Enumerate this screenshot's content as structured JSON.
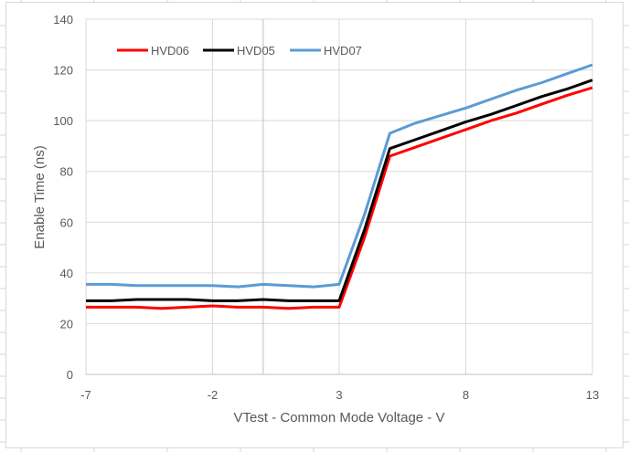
{
  "chart_data": {
    "type": "line",
    "title": "",
    "xlabel": "VTest - Common Mode Voltage - V",
    "ylabel": "Enable Time (ns)",
    "xlim": [
      -7,
      13
    ],
    "ylim": [
      0,
      140
    ],
    "x_ticks": [
      -7,
      -2,
      3,
      8,
      13
    ],
    "y_ticks": [
      0,
      20,
      40,
      60,
      80,
      100,
      120,
      140
    ],
    "grid": true,
    "legend_position": "top-left inside",
    "x": [
      -7,
      -6,
      -5,
      -4,
      -3,
      -2,
      -1,
      0,
      1,
      2,
      3,
      4,
      5,
      6,
      7,
      8,
      9,
      10,
      11,
      12,
      13
    ],
    "series": [
      {
        "name": "HVD06",
        "color": "#ff0000",
        "values": [
          26.5,
          26.5,
          26.5,
          26,
          26.5,
          27,
          26.5,
          26.5,
          26,
          26.5,
          26.5,
          54,
          86,
          89.5,
          93,
          96.5,
          100,
          103,
          106.5,
          110,
          113
        ]
      },
      {
        "name": "HVD05",
        "color": "#000000",
        "values": [
          29,
          29,
          29.5,
          29.5,
          29.5,
          29,
          29,
          29.5,
          29,
          29,
          29,
          57,
          89,
          92.5,
          96,
          99.5,
          102.5,
          106,
          109.5,
          112.5,
          116
        ]
      },
      {
        "name": "HVD07",
        "color": "#5b9bd5",
        "values": [
          35.5,
          35.5,
          35,
          35,
          35,
          35,
          34.5,
          35.5,
          35,
          34.5,
          35.5,
          63,
          95,
          99,
          102,
          105,
          108.5,
          112,
          115,
          118.5,
          122
        ]
      }
    ]
  },
  "legend": {
    "items": [
      {
        "label": "HVD06",
        "color": "#ff0000"
      },
      {
        "label": "HVD05",
        "color": "#000000"
      },
      {
        "label": "HVD07",
        "color": "#5b9bd5"
      }
    ]
  },
  "axes": {
    "x_tick_labels": [
      "-7",
      "-2",
      "3",
      "8",
      "13"
    ],
    "y_tick_labels": [
      "0",
      "20",
      "40",
      "60",
      "80",
      "100",
      "120",
      "140"
    ]
  }
}
